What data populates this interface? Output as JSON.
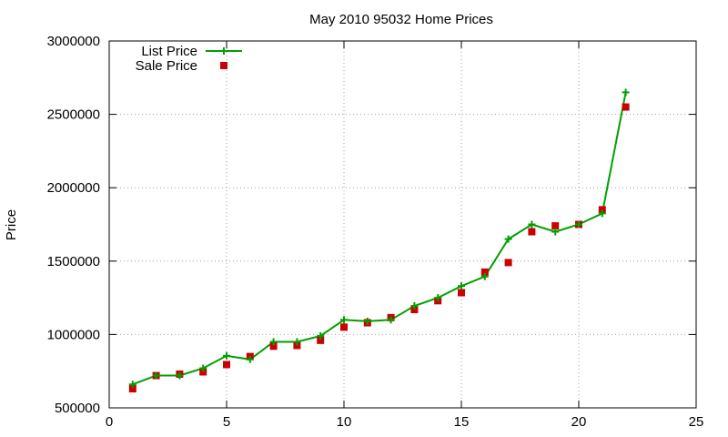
{
  "chart_data": {
    "type": "line",
    "title": "May 2010 95032 Home Prices",
    "xlabel": "",
    "ylabel": "Price",
    "xlim": [
      0,
      25
    ],
    "ylim": [
      500000,
      3000000
    ],
    "x_ticks": [
      "0",
      "5",
      "10",
      "15",
      "20",
      "25"
    ],
    "y_ticks": [
      "500000",
      "1000000",
      "1500000",
      "2000000",
      "2500000",
      "3000000"
    ],
    "grid": true,
    "legend_position": "top-left",
    "colors": {
      "list": "#00a000",
      "sale": "#cc0000"
    },
    "x": [
      1,
      2,
      3,
      4,
      5,
      6,
      7,
      8,
      9,
      10,
      11,
      12,
      13,
      14,
      15,
      16,
      17,
      18,
      19,
      20,
      21,
      22
    ],
    "series": [
      {
        "name": "List Price",
        "style": "linespoints",
        "values": [
          660000,
          720000,
          720000,
          770000,
          855000,
          830000,
          950000,
          950000,
          990000,
          1100000,
          1090000,
          1100000,
          1195000,
          1250000,
          1330000,
          1395000,
          1650000,
          1750000,
          1700000,
          1750000,
          1825000,
          2650000
        ]
      },
      {
        "name": "Sale Price",
        "style": "points",
        "values": [
          630000,
          720000,
          730000,
          745000,
          795000,
          850000,
          920000,
          925000,
          960000,
          1050000,
          1080000,
          1115000,
          1170000,
          1230000,
          1285000,
          1425000,
          1490000,
          1700000,
          1740000,
          1750000,
          1850000,
          2550000
        ]
      }
    ]
  }
}
